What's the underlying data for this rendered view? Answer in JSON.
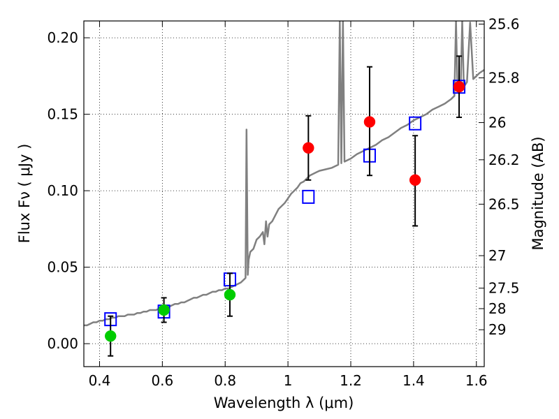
{
  "chart_data": {
    "type": "scatter",
    "xlabel": "Wavelength  λ (μm)",
    "ylabel": "Flux  Fν  ( μJy )",
    "y2label": "Magnitude (AB)",
    "xlim": [
      0.35,
      1.625
    ],
    "ylim": [
      -0.015,
      0.211
    ],
    "grid": true,
    "x_ticks": [
      {
        "value": 0.4,
        "label": "0.4"
      },
      {
        "value": 0.6,
        "label": "0.6"
      },
      {
        "value": 0.8,
        "label": "0.8"
      },
      {
        "value": 1.0,
        "label": "1"
      },
      {
        "value": 1.2,
        "label": "1.2"
      },
      {
        "value": 1.4,
        "label": "1.4"
      },
      {
        "value": 1.6,
        "label": "1.6"
      }
    ],
    "y_ticks": [
      {
        "value": 0.0,
        "label": "0.00"
      },
      {
        "value": 0.05,
        "label": "0.05"
      },
      {
        "value": 0.1,
        "label": "0.10"
      },
      {
        "value": 0.15,
        "label": "0.15"
      },
      {
        "value": 0.2,
        "label": "0.20"
      }
    ],
    "y2_ticks": [
      {
        "value": 25.6,
        "label": "25.6"
      },
      {
        "value": 25.8,
        "label": "25.8"
      },
      {
        "value": 26.0,
        "label": "26"
      },
      {
        "value": 26.2,
        "label": "26.2"
      },
      {
        "value": 26.5,
        "label": "26.5"
      },
      {
        "value": 27.0,
        "label": "27"
      },
      {
        "value": 27.5,
        "label": "27.5"
      },
      {
        "value": 28.0,
        "label": "28"
      },
      {
        "value": 29.0,
        "label": "29"
      }
    ],
    "series": [
      {
        "kind": "line",
        "color": "#808080",
        "x": [
          0.35,
          0.36,
          0.37,
          0.38,
          0.39,
          0.4,
          0.41,
          0.42,
          0.43,
          0.44,
          0.45,
          0.46,
          0.47,
          0.48,
          0.49,
          0.5,
          0.51,
          0.52,
          0.53,
          0.54,
          0.55,
          0.56,
          0.57,
          0.58,
          0.59,
          0.6,
          0.61,
          0.62,
          0.63,
          0.64,
          0.65,
          0.66,
          0.67,
          0.68,
          0.69,
          0.7,
          0.71,
          0.72,
          0.73,
          0.74,
          0.75,
          0.76,
          0.77,
          0.78,
          0.79,
          0.8,
          0.81,
          0.82,
          0.83,
          0.84,
          0.85,
          0.86,
          0.865,
          0.868,
          0.872,
          0.875,
          0.88,
          0.89,
          0.9,
          0.91,
          0.92,
          0.925,
          0.93,
          0.935,
          0.94,
          0.95,
          0.96,
          0.97,
          0.98,
          0.99,
          1.0,
          1.01,
          1.02,
          1.03,
          1.04,
          1.05,
          1.06,
          1.07,
          1.08,
          1.09,
          1.1,
          1.12,
          1.14,
          1.16,
          1.165,
          1.17,
          1.175,
          1.18,
          1.19,
          1.2,
          1.22,
          1.24,
          1.26,
          1.28,
          1.3,
          1.32,
          1.34,
          1.36,
          1.38,
          1.4,
          1.42,
          1.44,
          1.46,
          1.48,
          1.5,
          1.52,
          1.53,
          1.535,
          1.54,
          1.55,
          1.555,
          1.56,
          1.57,
          1.58,
          1.59,
          1.6,
          1.61,
          1.625
        ],
        "y": [
          0.012,
          0.012,
          0.013,
          0.014,
          0.014,
          0.015,
          0.015,
          0.016,
          0.016,
          0.017,
          0.017,
          0.018,
          0.018,
          0.018,
          0.019,
          0.019,
          0.019,
          0.02,
          0.02,
          0.021,
          0.021,
          0.022,
          0.022,
          0.022,
          0.023,
          0.023,
          0.024,
          0.024,
          0.025,
          0.026,
          0.026,
          0.027,
          0.027,
          0.028,
          0.029,
          0.03,
          0.03,
          0.031,
          0.032,
          0.032,
          0.033,
          0.034,
          0.034,
          0.035,
          0.035,
          0.036,
          0.036,
          0.037,
          0.038,
          0.039,
          0.04,
          0.042,
          0.043,
          0.14,
          0.045,
          0.055,
          0.06,
          0.062,
          0.068,
          0.07,
          0.073,
          0.065,
          0.08,
          0.07,
          0.078,
          0.08,
          0.084,
          0.088,
          0.09,
          0.092,
          0.095,
          0.098,
          0.1,
          0.102,
          0.105,
          0.106,
          0.108,
          0.11,
          0.111,
          0.112,
          0.113,
          0.114,
          0.115,
          0.117,
          0.211,
          0.118,
          0.211,
          0.119,
          0.12,
          0.121,
          0.124,
          0.126,
          0.128,
          0.13,
          0.133,
          0.135,
          0.138,
          0.141,
          0.143,
          0.146,
          0.148,
          0.15,
          0.153,
          0.155,
          0.157,
          0.16,
          0.162,
          0.211,
          0.165,
          0.167,
          0.211,
          0.168,
          0.171,
          0.21,
          0.173,
          0.175,
          0.177,
          0.179
        ]
      },
      {
        "kind": "squares",
        "color": "#0000ff",
        "x": [
          0.435,
          0.605,
          0.815,
          1.065,
          1.26,
          1.405,
          1.545
        ],
        "y": [
          0.016,
          0.021,
          0.042,
          0.096,
          0.123,
          0.144,
          0.168
        ]
      },
      {
        "kind": "points",
        "color": "#00cc00",
        "x": [
          0.435,
          0.605,
          0.815
        ],
        "y": [
          0.005,
          0.022,
          0.032
        ],
        "err_low": [
          0.013,
          0.008,
          0.014
        ],
        "err_high": [
          0.013,
          0.008,
          0.014
        ]
      },
      {
        "kind": "points",
        "color": "#ff0000",
        "x": [
          1.065,
          1.26,
          1.405,
          1.545
        ],
        "y": [
          0.128,
          0.145,
          0.107,
          0.168
        ],
        "err_low": [
          0.021,
          0.035,
          0.03,
          0.02
        ],
        "err_high": [
          0.021,
          0.036,
          0.029,
          0.02
        ]
      }
    ]
  }
}
